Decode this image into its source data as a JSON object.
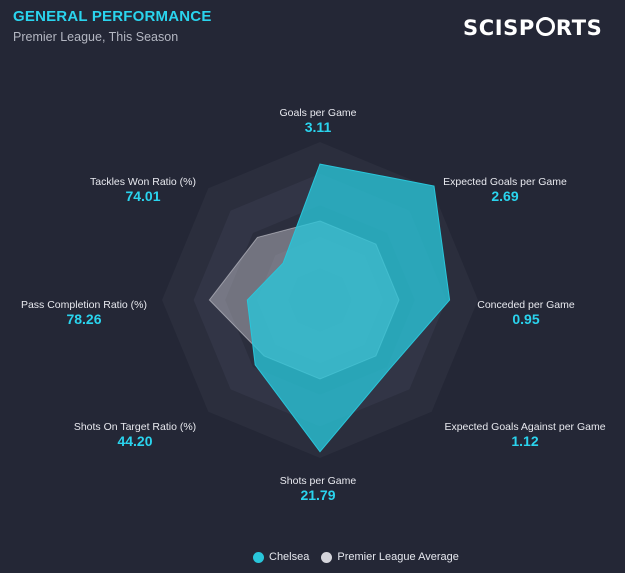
{
  "header": {
    "title": "GENERAL PERFORMANCE",
    "subtitle": "Premier League, This Season",
    "logo_text_1": "SCISP",
    "logo_text_2": "RTS"
  },
  "colors": {
    "chelsea": "#29c6da",
    "league_average": "#d5d5dc",
    "accent": "#2ad4ee"
  },
  "chart_data": {
    "type": "radar",
    "axes": [
      {
        "label": "Goals per Game",
        "value": "3.11",
        "chelsea": 0.86,
        "average": 0.5
      },
      {
        "label": "Expected Goals per Game",
        "value": "2.69",
        "chelsea": 1.02,
        "average": 0.5
      },
      {
        "label": "Conceded per Game",
        "value": "0.95",
        "chelsea": 0.82,
        "average": 0.5
      },
      {
        "label": "Expected Goals Against per Game",
        "value": "1.12",
        "chelsea": 0.62,
        "average": 0.5
      },
      {
        "label": "Shots per Game",
        "value": "21.79",
        "chelsea": 0.96,
        "average": 0.5
      },
      {
        "label": "Shots On Target Ratio (%)",
        "value": "44.20",
        "chelsea": 0.58,
        "average": 0.5
      },
      {
        "label": "Pass Completion Ratio (%)",
        "value": "78.26",
        "chelsea": 0.46,
        "average": 0.7
      },
      {
        "label": "Tackles Won Ratio (%)",
        "value": "74.01",
        "chelsea": 0.33,
        "average": 0.56
      }
    ],
    "series": [
      {
        "name": "Chelsea"
      },
      {
        "name": "Premier League Average"
      }
    ],
    "rings": 5
  }
}
